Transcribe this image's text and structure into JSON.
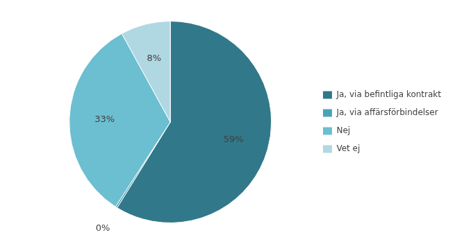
{
  "chart_data": {
    "type": "pie",
    "categories": [
      "Ja, via befintliga kontrakt",
      "Ja, via affärsförbindelser",
      "Nej",
      "Vet ej"
    ],
    "values": [
      59,
      0.3,
      33,
      8
    ],
    "value_labels": [
      "59%",
      "0%",
      "33%",
      "8%"
    ],
    "colors": [
      "#31788A",
      "#4AA3B5",
      "#6BBFD0",
      "#B0D8E3"
    ],
    "data_labels": true,
    "legend": "right"
  }
}
